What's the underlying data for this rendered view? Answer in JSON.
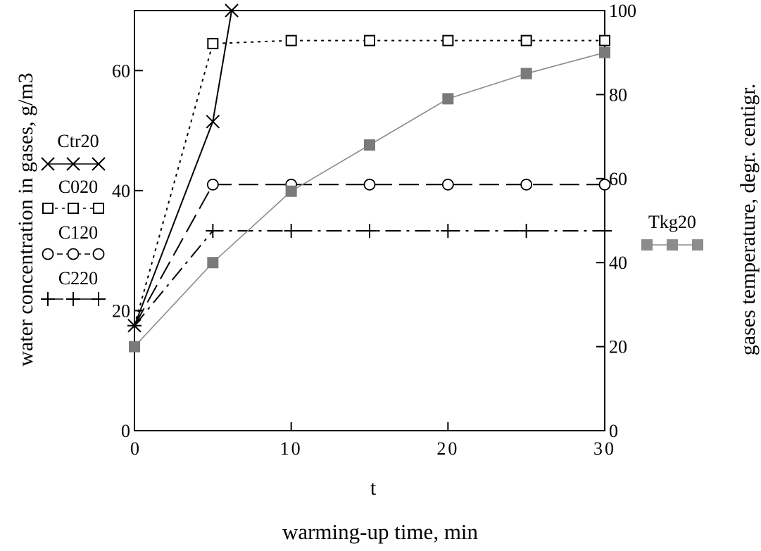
{
  "chart_data": {
    "type": "line",
    "x_axis": {
      "var_label": "t",
      "label": "warming-up time, min",
      "range": [
        0,
        30
      ],
      "ticks": [
        0,
        10,
        20,
        30
      ],
      "tick_labels": [
        "0",
        "10",
        "20",
        "30"
      ]
    },
    "y_left": {
      "label": "water concentration in gases, g/m3",
      "range": [
        0,
        70
      ],
      "ticks": [
        0,
        20,
        40,
        60
      ],
      "tick_labels": [
        "0",
        "20",
        "40",
        "60"
      ]
    },
    "y_right": {
      "label": "gases temperature, degr. centigr.",
      "range": [
        0,
        100
      ],
      "ticks": [
        0,
        20,
        40,
        60,
        80,
        100
      ],
      "tick_labels": [
        "0",
        "20",
        "40",
        "60",
        "80",
        "100"
      ]
    },
    "grid": false,
    "legend_left_placement": "left",
    "legend_right_placement": "right",
    "series": [
      {
        "name": "Ctr20",
        "axis": "left",
        "marker": "x",
        "line_style": "solid",
        "color": "#000000",
        "x": [
          0,
          5,
          6.2
        ],
        "values": [
          17.5,
          51.5,
          70
        ]
      },
      {
        "name": "C020",
        "axis": "left",
        "marker": "square",
        "line_style": "dotted",
        "color": "#000000",
        "x": [
          0,
          5,
          10,
          15,
          20,
          25,
          30
        ],
        "values": [
          17.5,
          64.5,
          65,
          65,
          65,
          65,
          65
        ]
      },
      {
        "name": "C120",
        "axis": "left",
        "marker": "circle",
        "line_style": "dashed",
        "color": "#000000",
        "x": [
          0,
          5,
          10,
          15,
          20,
          25,
          30
        ],
        "values": [
          17.5,
          41,
          41,
          41,
          41,
          41,
          41
        ]
      },
      {
        "name": "C220",
        "axis": "left",
        "marker": "plus",
        "line_style": "dashdot",
        "color": "#000000",
        "x": [
          0,
          5,
          10,
          15,
          20,
          25,
          30
        ],
        "values": [
          17.5,
          33.3,
          33.3,
          33.3,
          33.3,
          33.3,
          33.3
        ]
      },
      {
        "name": "Tkg20",
        "axis": "right",
        "marker": "filled-square",
        "line_style": "solid",
        "color": "#8c8c8c",
        "x": [
          0,
          5,
          10,
          15,
          20,
          25,
          30
        ],
        "values": [
          20,
          40,
          57,
          68,
          79,
          85,
          90
        ]
      }
    ]
  }
}
